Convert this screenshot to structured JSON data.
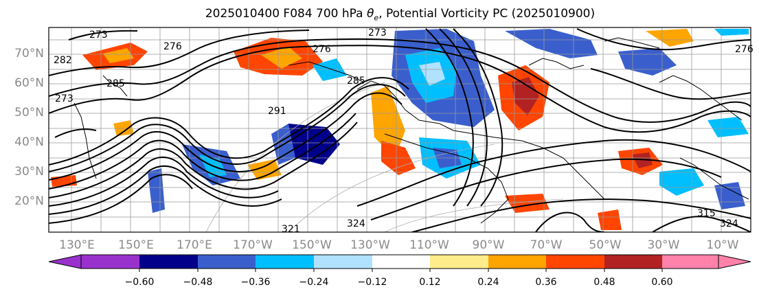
{
  "title": "2025010400 F084 700 hPa",
  "title_var": "θ",
  "title_sub": "e",
  "title_rest": ", Potential Vorticity PC (2025010900)",
  "lat_labels": [
    "70°N",
    "60°N",
    "50°N",
    "40°N",
    "30°N",
    "20°N"
  ],
  "lon_labels": [
    "130°E",
    "150°E",
    "170°E",
    "170°W",
    "150°W",
    "130°W",
    "110°W",
    "90°W",
    "70°W",
    "50°W",
    "30°W",
    "10°W"
  ],
  "colorbar": {
    "colors": [
      "#9932cc",
      "#00008b",
      "#3a5fcd",
      "#00bfff",
      "#b0e2ff",
      "#ffffff",
      "#ffec8b",
      "#ffa500",
      "#ff4500",
      "#b22222",
      "#ff82ab"
    ],
    "ticks": [
      "−0.60",
      "−0.48",
      "−0.36",
      "−0.24",
      "−0.12",
      "0.12",
      "0.24",
      "0.36",
      "0.48",
      "0.60"
    ]
  },
  "contour_labels": [
    "273",
    "276",
    "282",
    "285",
    "291",
    "276",
    "273",
    "285",
    "276",
    "273",
    "321",
    "324",
    "315",
    "324"
  ],
  "colors": {
    "frame": "#000000",
    "grid": "#888888",
    "contour": "#000000",
    "axis_text": "#8a8a8a"
  }
}
